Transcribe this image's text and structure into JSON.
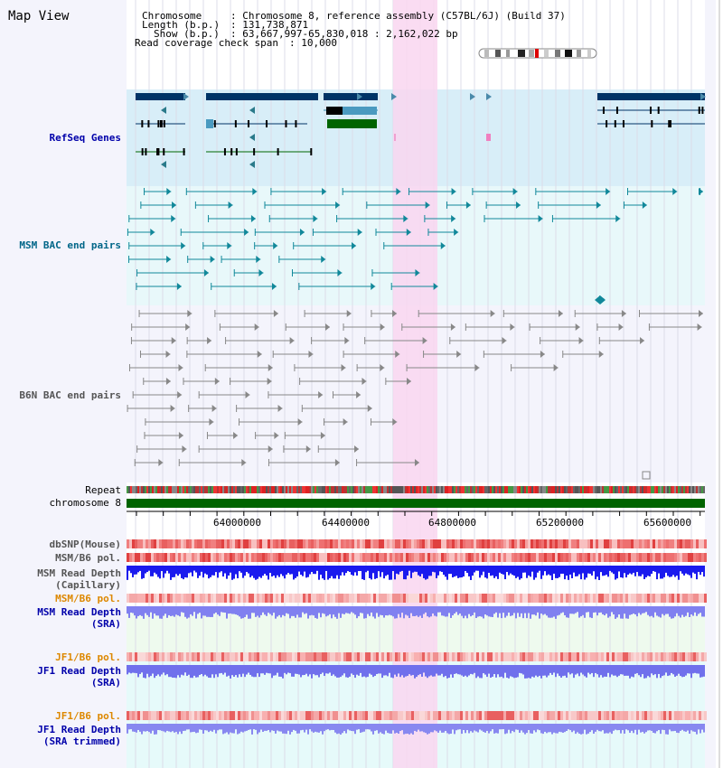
{
  "map_view": {
    "title": "Map View",
    "header": {
      "chromosome_key": "Chromosome",
      "chromosome_value": ": Chromosome 8, reference assembly (C57BL/6J) (Build 37)",
      "length_key": "Length (b.p.)",
      "length_value": ": 131,738,871",
      "show_key": "Show (b.p.)",
      "show_value": ": 63,667,997-65,830,018 : 2,162,022 bp",
      "coverage_key": "Read coverage check span",
      "coverage_value": ": 10,000"
    },
    "tracks": {
      "refseq": "RefSeq Genes",
      "msm_bac": "MSM BAC end pairs",
      "b6n_bac": "B6N BAC end pairs",
      "repeat": "Repeat",
      "chromosome": "chromosome 8",
      "dbsnp": "dbSNP(Mouse)",
      "msm_b6_pol_1": "MSM/B6 pol.",
      "msm_depth_cap_1": "MSM Read Depth",
      "msm_depth_cap_2": "(Capillary)",
      "msm_b6_pol_2": "MSM/B6 pol.",
      "msm_depth_sra_1": "MSM Read Depth",
      "msm_depth_sra_2": "(SRA)",
      "jf1_b6_pol_1": "JF1/B6 pol.",
      "jf1_depth_sra_1": "JF1 Read Depth",
      "jf1_depth_sra_2": "(SRA)",
      "jf1_b6_pol_2": "JF1/B6 pol.",
      "jf1_depth_trim_1": "JF1 Read Depth",
      "jf1_depth_trim_2": "(SRA trimmed)"
    },
    "axis_ticks": [
      "64000000",
      "64400000",
      "64800000",
      "65200000",
      "65600000"
    ],
    "colors": {
      "highlight": "#f9d6f0",
      "gene_blue": "#003366",
      "msm_teal": "#11889a",
      "b6n_gray": "#888888",
      "depth_blue": "#1a1aee",
      "depth_lavender": "#8080f0",
      "chrom_green": "#006400",
      "label_navy": "#0000aa",
      "label_teal": "#006688",
      "label_orange": "#dd8800"
    }
  }
}
